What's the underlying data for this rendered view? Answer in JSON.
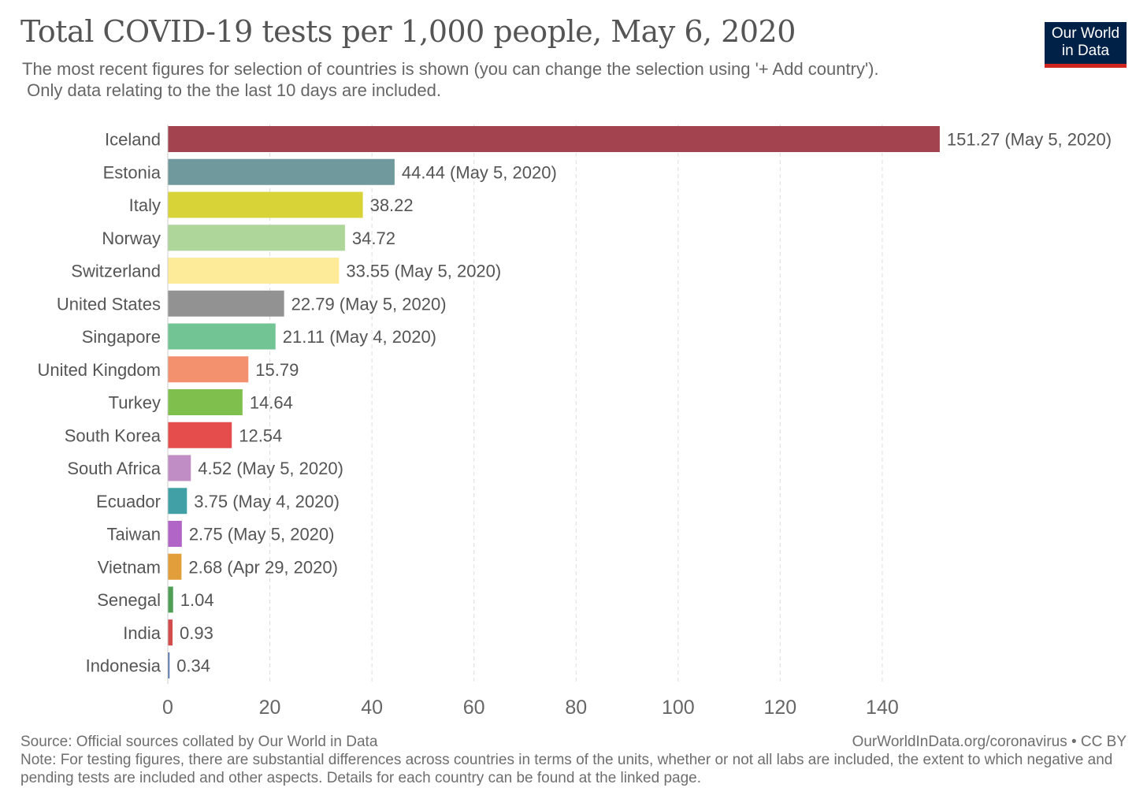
{
  "header": {
    "title": "Total COVID-19 tests per 1,000 people, May 6, 2020",
    "subtitle_line1": "The most recent figures for selection of countries is shown (you can change the selection using '+ Add country').",
    "subtitle_line2": " Only data relating to the the last 10 days are included.",
    "logo_line1": "Our World",
    "logo_line2": "in Data"
  },
  "footer": {
    "source": "Source: Official sources collated by Our World in Data",
    "license": "OurWorldInData.org/coronavirus • CC BY",
    "note": "Note: For testing figures, there are substantial differences across countries in terms of the units, whether or not all labs are included, the extent to which negative and pending tests are included and other aspects. Details for each country can be found at the linked page."
  },
  "colors": {
    "logo_bg": "#002147",
    "logo_accent": "#ce261e",
    "grid": "#dddddd"
  },
  "chart_data": {
    "type": "bar",
    "orientation": "horizontal",
    "title": "Total COVID-19 tests per 1,000 people, May 6, 2020",
    "xlabel": "",
    "ylabel": "",
    "xlim": [
      0,
      152
    ],
    "xticks": [
      0,
      20,
      40,
      60,
      80,
      100,
      120,
      140
    ],
    "grid": "vertical-dashed",
    "categories": [
      "Iceland",
      "Estonia",
      "Italy",
      "Norway",
      "Switzerland",
      "United States",
      "Singapore",
      "United Kingdom",
      "Turkey",
      "South Korea",
      "South Africa",
      "Ecuador",
      "Taiwan",
      "Vietnam",
      "Senegal",
      "India",
      "Indonesia"
    ],
    "values": [
      151.27,
      44.44,
      38.22,
      34.72,
      33.55,
      22.79,
      21.11,
      15.79,
      14.64,
      12.54,
      4.52,
      3.75,
      2.75,
      2.68,
      1.04,
      0.93,
      0.34
    ],
    "labels": [
      "151.27 (May 5, 2020)",
      "44.44 (May 5, 2020)",
      "38.22",
      "34.72",
      "33.55 (May 5, 2020)",
      "22.79 (May 5, 2020)",
      "21.11 (May 4, 2020)",
      "15.79",
      "14.64",
      "12.54",
      "4.52 (May 5, 2020)",
      "3.75 (May 4, 2020)",
      "2.75 (May 5, 2020)",
      "2.68 (Apr 29, 2020)",
      "1.04",
      "0.93",
      "0.34"
    ],
    "colors": [
      "#a2434f",
      "#70999d",
      "#d8d337",
      "#aed69a",
      "#feeb99",
      "#929292",
      "#72c494",
      "#f3906e",
      "#7fbf4d",
      "#e54d4d",
      "#c08ec5",
      "#40a0a6",
      "#b165c7",
      "#e29e3a",
      "#4e9f55",
      "#d34c4c",
      "#4c6fa9"
    ]
  }
}
